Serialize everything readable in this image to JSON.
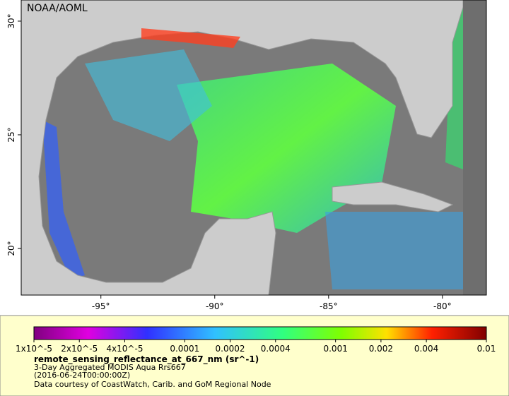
{
  "map": {
    "credit": "NOAA/AOML",
    "lon_ticks": [
      {
        "value": -95,
        "label": "-95°"
      },
      {
        "value": -90,
        "label": "-90°"
      },
      {
        "value": -85,
        "label": "-85°"
      },
      {
        "value": -80,
        "label": "-80°"
      }
    ],
    "lat_ticks": [
      {
        "value": 30,
        "label": "30°"
      },
      {
        "value": 25,
        "label": "25°"
      },
      {
        "value": 20,
        "label": "20°"
      }
    ],
    "lonlim": [
      -98.5,
      -78.07
    ],
    "latlim": [
      30.93,
      17.95
    ]
  },
  "colorbar": {
    "scale": "log",
    "lim": [
      1e-05,
      0.01
    ],
    "ticks": [
      {
        "value": 1e-05,
        "label": "1x10^-5"
      },
      {
        "value": 2e-05,
        "label": "2x10^-5"
      },
      {
        "value": 4e-05,
        "label": "4x10^-5"
      },
      0.0001,
      0.0002,
      0.0004,
      0.001,
      0.002,
      0.004,
      0.01
    ]
  },
  "legend": {
    "variable": "remote_sensing_reflectance_at_667_nm (sr^-1)",
    "lines": [
      "3-Day Aggregated MODIS Aqua Rrs667",
      "(2016-06-24T00:00:00Z)",
      "Data courtesy of CoastWatch, Carib. and GoM Regional Node"
    ]
  }
}
